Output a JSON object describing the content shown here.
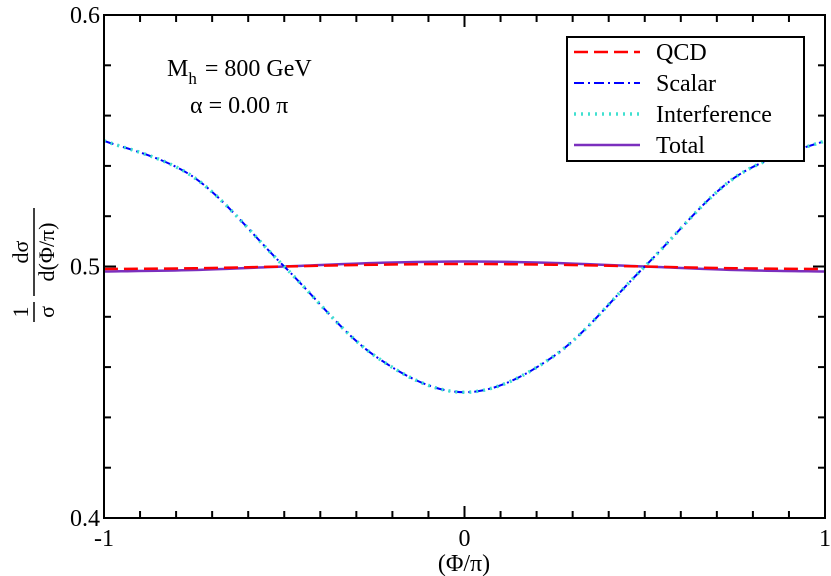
{
  "chart_data": {
    "type": "line",
    "title": "",
    "xlabel": "(Φ/π)",
    "ylabel": {
      "one": "1",
      "sigma": "σ",
      "numerator": "dσ",
      "denominator": "d(Φ/π)"
    },
    "xlim": [
      -1,
      1
    ],
    "ylim": [
      0.4,
      0.6
    ],
    "x_ticks": [
      {
        "value": -1,
        "label": "-1"
      },
      {
        "value": 0,
        "label": "0"
      },
      {
        "value": 1,
        "label": "1"
      }
    ],
    "y_ticks": [
      {
        "value": 0.4,
        "label": "0.4"
      },
      {
        "value": 0.5,
        "label": "0.5"
      },
      {
        "value": 0.6,
        "label": "0.6"
      }
    ],
    "annotation": {
      "mass_symbol": "M",
      "mass_subscript": "h",
      "mass_value": "= 800 GeV",
      "alpha_text": "α = 0.00 π"
    },
    "legend_position": "top-right",
    "series": [
      {
        "name": "QCD",
        "color": "#ff0000",
        "dash": "dashed",
        "x": [
          -1,
          -0.75,
          -0.5,
          -0.25,
          0,
          0.25,
          0.5,
          0.75,
          1
        ],
        "y": [
          0.499,
          0.4993,
          0.5,
          0.5007,
          0.501,
          0.5007,
          0.5,
          0.4993,
          0.499
        ]
      },
      {
        "name": "Scalar",
        "color": "#0000ff",
        "dash": "dash-dot",
        "x": [
          -1,
          -0.75,
          -0.5,
          -0.25,
          0,
          0.25,
          0.5,
          0.75,
          1
        ],
        "y": [
          0.55,
          0.5354,
          0.5,
          0.4646,
          0.45,
          0.4646,
          0.5,
          0.5354,
          0.55
        ]
      },
      {
        "name": "Interference",
        "color": "#40e0d0",
        "dash": "dotted",
        "x": [
          -1,
          -0.75,
          -0.5,
          -0.25,
          0,
          0.25,
          0.5,
          0.75,
          1
        ],
        "y": [
          0.55,
          0.5354,
          0.5,
          0.4646,
          0.45,
          0.4646,
          0.5,
          0.5354,
          0.55
        ]
      },
      {
        "name": "Total",
        "color": "#7b2fbe",
        "dash": "solid",
        "x": [
          -1,
          -0.75,
          -0.5,
          -0.25,
          0,
          0.25,
          0.5,
          0.75,
          1
        ],
        "y": [
          0.498,
          0.4986,
          0.5,
          0.5014,
          0.502,
          0.5014,
          0.5,
          0.4986,
          0.498
        ]
      }
    ]
  }
}
